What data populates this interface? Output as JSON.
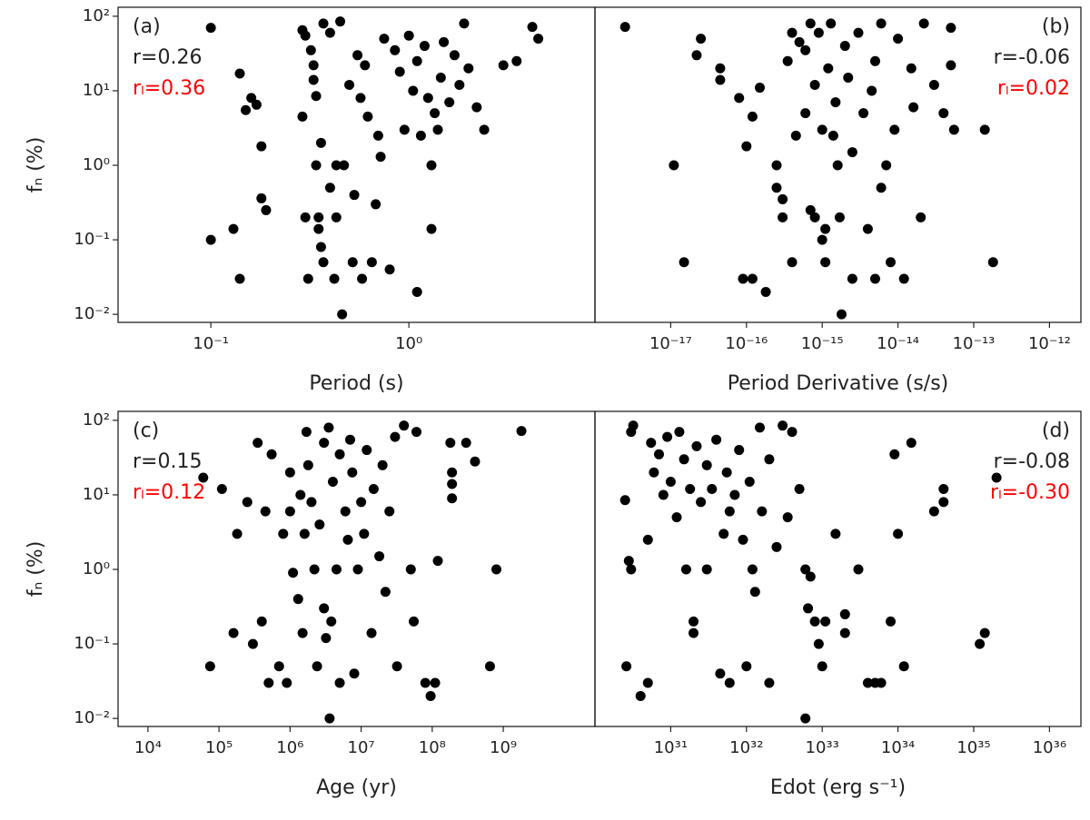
{
  "chart_data": [
    {
      "type": "scatter",
      "xlabel": "Period (s)",
      "ylabel": "fₙ (%)",
      "log_x": true,
      "log_y": true,
      "color": "#000000",
      "xlim": [
        0.034,
        8.7
      ],
      "ylim": [
        0.0078,
        132
      ],
      "xticks": [
        {
          "value": 0.1,
          "label": "10⁻¹"
        },
        {
          "value": 1,
          "label": "10⁰"
        }
      ],
      "yticks": [
        {
          "value": 0.01,
          "label": "10⁻²"
        },
        {
          "value": 0.1,
          "label": "10⁻¹"
        },
        {
          "value": 1,
          "label": "10⁰"
        },
        {
          "value": 10,
          "label": "10¹"
        },
        {
          "value": 100,
          "label": "10²"
        }
      ],
      "annotation_corner": "upper left",
      "annotations": [
        {
          "text": "(a)",
          "color": "#222222"
        },
        {
          "text": "r=0.26",
          "color": "#222222"
        },
        {
          "text": "rₗ=0.36",
          "color": "#ff0000"
        }
      ],
      "x": [
        0.1,
        0.1,
        0.13,
        0.14,
        0.14,
        0.15,
        0.16,
        0.17,
        0.18,
        0.18,
        0.19,
        0.29,
        0.29,
        0.3,
        0.3,
        0.31,
        0.32,
        0.33,
        0.33,
        0.34,
        0.34,
        0.35,
        0.35,
        0.36,
        0.36,
        0.37,
        0.37,
        0.4,
        0.4,
        0.42,
        0.43,
        0.43,
        0.45,
        0.46,
        0.47,
        0.5,
        0.52,
        0.53,
        0.55,
        0.57,
        0.58,
        0.6,
        0.62,
        0.65,
        0.68,
        0.7,
        0.72,
        0.75,
        0.8,
        0.85,
        0.9,
        0.95,
        1.0,
        1.05,
        1.1,
        1.1,
        1.15,
        1.2,
        1.25,
        1.3,
        1.3,
        1.35,
        1.4,
        1.45,
        1.5,
        1.6,
        1.7,
        1.8,
        1.9,
        2.0,
        2.2,
        2.4,
        3.0,
        4.2,
        4.5,
        3.5
      ],
      "y": [
        70,
        0.1,
        0.14,
        0.03,
        17,
        5.5,
        8,
        6.5,
        1.8,
        0.36,
        0.25,
        4.5,
        65,
        55,
        0.2,
        0.03,
        35,
        22,
        14,
        8.5,
        1.0,
        0.2,
        0.14,
        0.08,
        2.0,
        0.05,
        80,
        60,
        0.5,
        0.03,
        1.0,
        0.2,
        85,
        0.01,
        1.0,
        12,
        0.05,
        0.4,
        30,
        8,
        0.03,
        22,
        4.5,
        0.05,
        0.3,
        2.5,
        1.3,
        50,
        0.04,
        35,
        18,
        3,
        55,
        10,
        25,
        0.02,
        2.5,
        40,
        8,
        1.0,
        0.14,
        5,
        3,
        15,
        45,
        7,
        30,
        12,
        80,
        20,
        6,
        3,
        22,
        72,
        50,
        25
      ]
    },
    {
      "type": "scatter",
      "xlabel": "Period Derivative (s/s)",
      "log_x": true,
      "log_y": true,
      "color": "#000000",
      "xlim": [
        1e-18,
        2.6e-12
      ],
      "ylim": [
        0.0078,
        132
      ],
      "xticks": [
        {
          "value": 1e-17,
          "label": "10⁻¹⁷"
        },
        {
          "value": 1e-16,
          "label": "10⁻¹⁶"
        },
        {
          "value": 1e-15,
          "label": "10⁻¹⁵"
        },
        {
          "value": 1e-14,
          "label": "10⁻¹⁴"
        },
        {
          "value": 1e-13,
          "label": "10⁻¹³"
        },
        {
          "value": 1e-12,
          "label": "10⁻¹²"
        }
      ],
      "annotation_corner": "upper right",
      "annotations": [
        {
          "text": "(b)",
          "color": "#222222"
        },
        {
          "text": "r=-0.06",
          "color": "#222222"
        },
        {
          "text": "rₗ=0.02",
          "color": "#ff0000"
        }
      ],
      "x": [
        2.5e-18,
        1.1e-17,
        1.5e-17,
        2.5e-17,
        2.2e-17,
        4.5e-17,
        4.5e-17,
        8e-17,
        9e-17,
        1e-16,
        1.2e-16,
        1.2e-16,
        1.5e-16,
        1.8e-16,
        2.5e-16,
        2.5e-16,
        3e-16,
        3e-16,
        3.5e-16,
        4e-16,
        4e-16,
        4.5e-16,
        5e-16,
        6e-16,
        6e-16,
        7e-16,
        7e-16,
        8e-16,
        8e-16,
        9e-16,
        1e-15,
        1e-15,
        1.1e-15,
        1.1e-15,
        1.2e-15,
        1.3e-15,
        1.4e-15,
        1.5e-15,
        1.6e-15,
        1.7e-15,
        1.8e-15,
        2e-15,
        2.2e-15,
        2.5e-15,
        2.5e-15,
        3e-15,
        3.5e-15,
        4e-15,
        4.5e-15,
        5e-15,
        5e-15,
        6e-15,
        6e-15,
        7e-15,
        8e-15,
        9e-15,
        1e-14,
        1.2e-14,
        1.5e-14,
        1.6e-14,
        2e-14,
        2.2e-14,
        3e-14,
        4e-14,
        5e-14,
        5e-14,
        5.5e-14,
        1.4e-13,
        1.8e-13
      ],
      "y": [
        72,
        1.0,
        0.05,
        50,
        30,
        20,
        14,
        8,
        0.03,
        1.8,
        0.03,
        4.5,
        11,
        0.02,
        1.0,
        0.5,
        0.2,
        0.35,
        25,
        60,
        0.05,
        2.5,
        45,
        35,
        5,
        80,
        0.25,
        12,
        0.2,
        60,
        3,
        0.1,
        0.14,
        0.05,
        20,
        80,
        2.5,
        7,
        1.0,
        0.2,
        0.01,
        40,
        15,
        0.03,
        1.5,
        60,
        5,
        0.14,
        10,
        0.03,
        25,
        0.5,
        80,
        1.0,
        0.05,
        3,
        50,
        0.03,
        20,
        6,
        0.2,
        80,
        12,
        5,
        22,
        70,
        3,
        3,
        0.05
      ]
    },
    {
      "type": "scatter",
      "xlabel": "Age (yr)",
      "ylabel": "fₙ (%)",
      "log_x": true,
      "log_y": true,
      "color": "#000000",
      "xlim": [
        3800,
        19500000000.0
      ],
      "ylim": [
        0.0078,
        132
      ],
      "xticks": [
        {
          "value": 10000.0,
          "label": "10⁴"
        },
        {
          "value": 100000.0,
          "label": "10⁵"
        },
        {
          "value": 1000000.0,
          "label": "10⁶"
        },
        {
          "value": 10000000.0,
          "label": "10⁷"
        },
        {
          "value": 100000000.0,
          "label": "10⁸"
        },
        {
          "value": 1000000000.0,
          "label": "10⁹"
        }
      ],
      "yticks": [
        {
          "value": 0.01,
          "label": "10⁻²"
        },
        {
          "value": 0.1,
          "label": "10⁻¹"
        },
        {
          "value": 1,
          "label": "10⁰"
        },
        {
          "value": 10,
          "label": "10¹"
        },
        {
          "value": 100,
          "label": "10²"
        }
      ],
      "annotation_corner": "upper left",
      "annotations": [
        {
          "text": "(c)",
          "color": "#222222"
        },
        {
          "text": "r=0.15",
          "color": "#222222"
        },
        {
          "text": "rₗ=0.12",
          "color": "#ff0000"
        }
      ],
      "x": [
        60000.0,
        75000.0,
        110000.0,
        160000.0,
        180000.0,
        250000.0,
        300000.0,
        350000.0,
        400000.0,
        450000.0,
        500000.0,
        550000.0,
        700000.0,
        800000.0,
        900000.0,
        1000000.0,
        1000000.0,
        1100000.0,
        1300000.0,
        1400000.0,
        1500000.0,
        1600000.0,
        1700000.0,
        1800000.0,
        2000000.0,
        2200000.0,
        2400000.0,
        2600000.0,
        3000000.0,
        3000000.0,
        3200000.0,
        3500000.0,
        3600000.0,
        3800000.0,
        4000000.0,
        4500000.0,
        5000000.0,
        5000000.0,
        6000000.0,
        6500000.0,
        7000000.0,
        7500000.0,
        8000000.0,
        9000000.0,
        10000000.0,
        11000000.0,
        12000000.0,
        14000000.0,
        15000000.0,
        18000000.0,
        20000000.0,
        22000000.0,
        25000000.0,
        30000000.0,
        32000000.0,
        40000000.0,
        50000000.0,
        55000000.0,
        60000000.0,
        80000000.0,
        95000000.0,
        110000000.0,
        120000000.0,
        180000000.0,
        190000000.0,
        190000000.0,
        190000000.0,
        300000000.0,
        400000000.0,
        650000000.0,
        800000000.0,
        1800000000.0
      ],
      "y": [
        17,
        0.05,
        12,
        0.14,
        3,
        8,
        0.1,
        50,
        0.2,
        6,
        0.03,
        35,
        0.05,
        3,
        0.03,
        6,
        20,
        0.9,
        0.4,
        10,
        0.14,
        3,
        70,
        25,
        8,
        1.0,
        0.05,
        4,
        50,
        0.3,
        0.12,
        80,
        0.01,
        0.2,
        15,
        1.0,
        35,
        0.03,
        6,
        2.5,
        55,
        20,
        0.04,
        1.0,
        8,
        3,
        40,
        0.14,
        12,
        1.5,
        25,
        0.5,
        6,
        60,
        0.05,
        85,
        1.0,
        0.2,
        70,
        0.03,
        0.02,
        0.03,
        1.3,
        50,
        20,
        14,
        9,
        50,
        28,
        0.05,
        1.0,
        72
      ]
    },
    {
      "type": "scatter",
      "xlabel": "Edot (erg s⁻¹)",
      "log_x": true,
      "log_y": true,
      "color": "#000000",
      "xlim": [
        1e+30,
        2.6e+36
      ],
      "ylim": [
        0.0078,
        132
      ],
      "xticks": [
        {
          "value": 1e+31,
          "label": "10³¹"
        },
        {
          "value": 1e+32,
          "label": "10³²"
        },
        {
          "value": 1e+33,
          "label": "10³³"
        },
        {
          "value": 1e+34,
          "label": "10³⁴"
        },
        {
          "value": 1e+35,
          "label": "10³⁵"
        },
        {
          "value": 1e+36,
          "label": "10³⁶"
        }
      ],
      "annotation_corner": "upper right",
      "annotations": [
        {
          "text": "(d)",
          "color": "#222222"
        },
        {
          "text": "r=-0.08",
          "color": "#222222"
        },
        {
          "text": "rₗ=-0.30",
          "color": "#ff0000"
        }
      ],
      "x": [
        2.5e+30,
        2.6e+30,
        2.8e+30,
        3e+30,
        3e+30,
        3.2e+30,
        4e+30,
        5e+30,
        5.5e+30,
        5e+30,
        6e+30,
        7e+30,
        8e+30,
        9e+30,
        1e+31,
        1.2e+31,
        1.3e+31,
        1.5e+31,
        1.6e+31,
        1.8e+31,
        2e+31,
        2e+31,
        2.2e+31,
        2.5e+31,
        3e+31,
        3e+31,
        3.5e+31,
        4e+31,
        4.5e+31,
        5e+31,
        5.5e+31,
        6e+31,
        6e+31,
        7e+31,
        8e+31,
        9e+31,
        1e+32,
        1.1e+32,
        1.2e+32,
        1.3e+32,
        1.5e+32,
        1.6e+32,
        2e+32,
        2e+32,
        2.5e+32,
        3e+32,
        3.5e+32,
        4e+32,
        5e+32,
        6e+32,
        6e+32,
        6.5e+32,
        7e+32,
        8e+32,
        9e+32,
        1e+33,
        1.1e+33,
        1.5e+33,
        2e+33,
        2e+33,
        3e+33,
        4e+33,
        5e+33,
        6e+33,
        8e+33,
        9e+33,
        1e+34,
        1.2e+34,
        1.5e+34,
        3e+34,
        4e+34,
        4e+34,
        1.2e+35,
        1.4e+35,
        2e+35
      ],
      "y": [
        8.5,
        0.05,
        1.3,
        70,
        1.0,
        85,
        0.02,
        2.5,
        50,
        0.03,
        20,
        35,
        10,
        60,
        15,
        5,
        70,
        30,
        1.0,
        12,
        0.2,
        0.14,
        45,
        8,
        25,
        1.0,
        12,
        55,
        0.04,
        3,
        20,
        0.03,
        6,
        10,
        40,
        2.5,
        0.05,
        15,
        1.0,
        0.5,
        80,
        6,
        30,
        0.03,
        2,
        85,
        5,
        70,
        12,
        0.01,
        1.0,
        0.3,
        0.8,
        0.2,
        0.1,
        0.05,
        0.2,
        3,
        0.14,
        0.25,
        1.0,
        0.03,
        0.03,
        0.03,
        0.2,
        35,
        3,
        0.05,
        50,
        6,
        8,
        12,
        0.1,
        0.14,
        17
      ]
    }
  ]
}
